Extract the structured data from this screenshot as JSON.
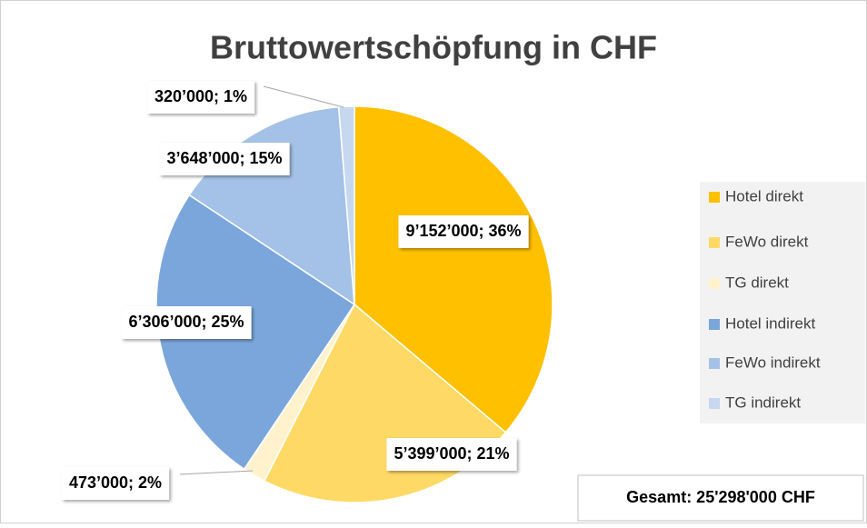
{
  "chart_data": {
    "type": "pie",
    "title": "Bruttowertschöpfung in CHF",
    "categories": [
      "Hotel direkt",
      "FeWo direkt",
      "TG direkt",
      "Hotel indirekt",
      "FeWo indirekt",
      "TG indirekt"
    ],
    "values": [
      9152000,
      5399000,
      473000,
      6306000,
      3648000,
      320000
    ],
    "value_labels": [
      "9’152’000; 36%",
      "5’399’000; 21%",
      "473’000; 2%",
      "6’306’000; 25%",
      "3’648’000; 15%",
      "320’000; 1%"
    ],
    "colors": [
      "#ffc000",
      "#ffd966",
      "#fff2cc",
      "#7aa6db",
      "#a4c1e7",
      "#c6d7f0"
    ],
    "legend": "right",
    "annotations": [
      "Gesamt: 25'298'000 CHF"
    ]
  }
}
